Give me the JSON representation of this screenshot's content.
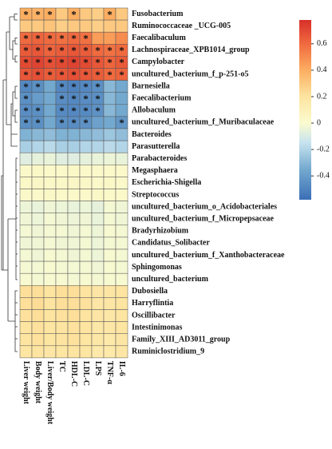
{
  "chart_data": {
    "type": "heatmap",
    "columns": [
      "Liver weight",
      "Body weight",
      "Liver/Body weight",
      "TC",
      "HDL-C",
      "LDL-C",
      "LPS",
      "TNF-α",
      "IL-6"
    ],
    "rows": [
      "Fusobacterium",
      "Ruminococcaceae _UCG-005",
      "Faecalibaculum",
      "Lachnospiraceae_XPB1014_group",
      "Campylobacter",
      "uncultured_bacterium_f_p-251-o5",
      "Barnesiella",
      "Faecalibacterium",
      "Allobaculum",
      "uncultured_bacterium_f_Muribaculaceae",
      "Bacteroides",
      "Parasutterella",
      "Parabacteroides",
      "Megasphaera",
      "Escherichia-Shigella",
      "Streptococcus",
      "uncultured_bacterium_o_Acidobacteriales",
      "uncultured_bacterium_f_Micropepsaceae",
      "Bradyrhizobium",
      "Candidatus_Solibacter",
      "uncultured_bacterium_f_Xanthobacteraceae",
      "Sphingomonas",
      "uncultured_bacterium",
      "Dubosiella",
      "Harryflintia",
      "Oscillibacter",
      "Intestinimonas",
      "Family_XIII_AD3011_group",
      "Ruminiclostridium_9"
    ],
    "values": [
      [
        0.4,
        0.38,
        0.4,
        0.3,
        0.4,
        0.3,
        0.28,
        0.4,
        0.3
      ],
      [
        0.3,
        0.3,
        0.32,
        0.28,
        0.3,
        0.3,
        0.28,
        0.3,
        0.3
      ],
      [
        0.6,
        0.62,
        0.6,
        0.58,
        0.6,
        0.58,
        0.45,
        0.45,
        0.5
      ],
      [
        0.65,
        0.66,
        0.62,
        0.64,
        0.66,
        0.64,
        0.6,
        0.58,
        0.6
      ],
      [
        0.7,
        0.72,
        0.68,
        0.7,
        0.72,
        0.7,
        0.66,
        0.62,
        0.65
      ],
      [
        0.66,
        0.68,
        0.64,
        0.66,
        0.68,
        0.66,
        0.64,
        0.6,
        0.62
      ],
      [
        -0.48,
        -0.45,
        -0.35,
        -0.48,
        -0.5,
        -0.48,
        -0.45,
        -0.3,
        -0.35
      ],
      [
        -0.45,
        -0.4,
        -0.35,
        -0.46,
        -0.48,
        -0.46,
        -0.45,
        -0.3,
        -0.35
      ],
      [
        -0.46,
        -0.45,
        -0.35,
        -0.47,
        -0.48,
        -0.47,
        -0.44,
        -0.3,
        -0.35
      ],
      [
        -0.45,
        -0.45,
        -0.35,
        -0.45,
        -0.46,
        -0.44,
        -0.38,
        -0.35,
        -0.42
      ],
      [
        -0.32,
        -0.3,
        -0.28,
        -0.32,
        -0.32,
        -0.3,
        -0.28,
        -0.25,
        -0.28
      ],
      [
        -0.22,
        -0.2,
        -0.18,
        -0.22,
        -0.22,
        -0.2,
        -0.2,
        -0.18,
        -0.2
      ],
      [
        -0.08,
        -0.06,
        -0.05,
        -0.08,
        -0.08,
        -0.06,
        -0.05,
        -0.04,
        -0.05
      ],
      [
        0.02,
        0.03,
        0.02,
        0.02,
        0.03,
        0.02,
        0.02,
        0.02,
        0.02
      ],
      [
        0.03,
        0.04,
        0.03,
        0.03,
        0.04,
        0.03,
        0.02,
        0.03,
        0.02
      ],
      [
        0.02,
        0.02,
        0.03,
        0.02,
        0.02,
        0.02,
        0.03,
        0.02,
        0.02
      ],
      [
        -0.04,
        -0.05,
        -0.03,
        -0.04,
        -0.05,
        -0.04,
        -0.06,
        -0.02,
        -0.03
      ],
      [
        -0.03,
        -0.04,
        -0.02,
        -0.03,
        -0.04,
        -0.03,
        -0.05,
        -0.02,
        -0.03
      ],
      [
        -0.02,
        -0.03,
        -0.02,
        -0.02,
        -0.03,
        -0.02,
        -0.04,
        -0.01,
        -0.02
      ],
      [
        -0.03,
        -0.03,
        -0.02,
        -0.03,
        -0.03,
        -0.02,
        -0.04,
        -0.02,
        -0.02
      ],
      [
        -0.02,
        -0.03,
        -0.01,
        -0.02,
        -0.03,
        -0.02,
        -0.04,
        -0.01,
        -0.02
      ],
      [
        -0.02,
        -0.02,
        -0.01,
        -0.02,
        -0.02,
        -0.02,
        -0.03,
        -0.01,
        -0.02
      ],
      [
        -0.01,
        -0.02,
        -0.01,
        -0.01,
        -0.02,
        -0.01,
        -0.02,
        -0.01,
        -0.01
      ],
      [
        0.22,
        0.22,
        0.2,
        0.22,
        0.22,
        0.2,
        0.18,
        0.18,
        0.2
      ],
      [
        0.22,
        0.23,
        0.2,
        0.22,
        0.22,
        0.21,
        0.18,
        0.18,
        0.2
      ],
      [
        0.21,
        0.22,
        0.2,
        0.21,
        0.22,
        0.2,
        0.18,
        0.17,
        0.19
      ],
      [
        0.2,
        0.21,
        0.19,
        0.2,
        0.21,
        0.2,
        0.17,
        0.17,
        0.19
      ],
      [
        0.2,
        0.21,
        0.19,
        0.2,
        0.21,
        0.19,
        0.17,
        0.16,
        0.18
      ],
      [
        0.19,
        0.2,
        0.18,
        0.19,
        0.2,
        0.19,
        0.16,
        0.16,
        0.18
      ]
    ],
    "cell_labels": [
      [
        "*",
        "*",
        "*",
        null,
        "*",
        null,
        null,
        "*",
        null
      ],
      [
        null,
        null,
        null,
        null,
        null,
        null,
        null,
        null,
        null
      ],
      [
        "*",
        "*",
        "*",
        "*",
        "*",
        "*",
        null,
        null,
        null
      ],
      [
        "*",
        "*",
        "*",
        "*",
        "*",
        "*",
        "*",
        "*",
        "*"
      ],
      [
        "*",
        "*",
        "*",
        "*",
        "*",
        "*",
        "*",
        "*",
        "*"
      ],
      [
        "*",
        "*",
        "*",
        "*",
        "*",
        "*",
        "*",
        "*",
        "*"
      ],
      [
        "*",
        "*",
        null,
        "*",
        "*",
        "*",
        "*",
        null,
        null
      ],
      [
        "*",
        null,
        null,
        "*",
        "*",
        "*",
        "*",
        null,
        null
      ],
      [
        "*",
        "*",
        null,
        "*",
        "*",
        "*",
        "*",
        null,
        null
      ],
      [
        "*",
        "*",
        null,
        "*",
        "*",
        "*",
        null,
        null,
        "*"
      ],
      [
        null,
        null,
        null,
        null,
        null,
        null,
        null,
        null,
        null
      ],
      [
        null,
        null,
        null,
        null,
        null,
        null,
        null,
        null,
        null
      ],
      [
        null,
        null,
        null,
        null,
        null,
        null,
        null,
        null,
        null
      ],
      [
        null,
        null,
        null,
        null,
        null,
        null,
        null,
        null,
        null
      ],
      [
        null,
        null,
        null,
        null,
        null,
        null,
        null,
        null,
        null
      ],
      [
        null,
        null,
        null,
        null,
        null,
        null,
        null,
        null,
        null
      ],
      [
        null,
        null,
        null,
        null,
        null,
        null,
        null,
        null,
        null
      ],
      [
        null,
        null,
        null,
        null,
        null,
        null,
        null,
        null,
        null
      ],
      [
        null,
        null,
        null,
        null,
        null,
        null,
        null,
        null,
        null
      ],
      [
        null,
        null,
        null,
        null,
        null,
        null,
        null,
        null,
        null
      ],
      [
        null,
        null,
        null,
        null,
        null,
        null,
        null,
        null,
        null
      ],
      [
        null,
        null,
        null,
        null,
        null,
        null,
        null,
        null,
        null
      ],
      [
        null,
        null,
        null,
        null,
        null,
        null,
        null,
        null,
        null
      ],
      [
        null,
        null,
        null,
        null,
        null,
        null,
        null,
        null,
        null
      ],
      [
        null,
        null,
        null,
        null,
        null,
        null,
        null,
        null,
        null
      ],
      [
        null,
        null,
        null,
        null,
        null,
        null,
        null,
        null,
        null
      ],
      [
        null,
        null,
        null,
        null,
        null,
        null,
        null,
        null,
        null
      ],
      [
        null,
        null,
        null,
        null,
        null,
        null,
        null,
        null,
        null
      ],
      [
        null,
        null,
        null,
        null,
        null,
        null,
        null,
        null,
        null
      ]
    ],
    "colorbar_lim": [
      -0.58,
      0.78
    ],
    "colorbar_ticks": [
      0.6,
      0.4,
      0.2,
      0,
      -0.2,
      -0.4
    ],
    "colorscale": [
      [
        -0.58,
        "#3b6fb6"
      ],
      [
        -0.35,
        "#74a9cf"
      ],
      [
        -0.15,
        "#c6e3ef"
      ],
      [
        0,
        "#fbfbcf"
      ],
      [
        0.2,
        "#fde4a0"
      ],
      [
        0.4,
        "#fcae61"
      ],
      [
        0.6,
        "#f06a3f"
      ],
      [
        0.78,
        "#d7302a"
      ]
    ]
  }
}
